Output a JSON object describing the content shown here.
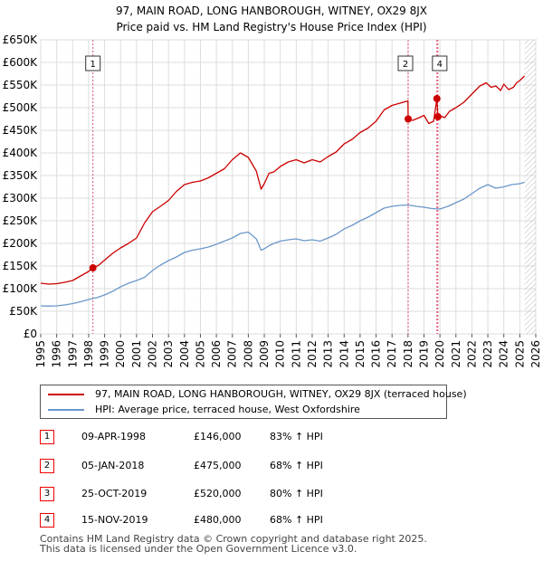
{
  "title": "97, MAIN ROAD, LONG HANBOROUGH, WITNEY, OX29 8JX",
  "subtitle": "Price paid vs. HM Land Registry's House Price Index (HPI)",
  "colors": {
    "property": "#cc0000",
    "hpi": "#6b97c9",
    "marker": "#e05070",
    "grid": "#dddddd"
  },
  "chart_data": {
    "type": "line",
    "ylim": [
      0,
      650000
    ],
    "xlim": [
      1995,
      2026
    ],
    "yticks": [
      {
        "value": 0,
        "label": "£0"
      },
      {
        "value": 50000,
        "label": "£50K"
      },
      {
        "value": 100000,
        "label": "£100K"
      },
      {
        "value": 150000,
        "label": "£150K"
      },
      {
        "value": 200000,
        "label": "£200K"
      },
      {
        "value": 250000,
        "label": "£250K"
      },
      {
        "value": 300000,
        "label": "£300K"
      },
      {
        "value": 350000,
        "label": "£350K"
      },
      {
        "value": 400000,
        "label": "£400K"
      },
      {
        "value": 450000,
        "label": "£450K"
      },
      {
        "value": 500000,
        "label": "£500K"
      },
      {
        "value": 550000,
        "label": "£550K"
      },
      {
        "value": 600000,
        "label": "£600K"
      },
      {
        "value": 650000,
        "label": "£650K"
      }
    ],
    "xticks": [
      "1995",
      "1996",
      "1997",
      "1998",
      "1999",
      "2000",
      "2001",
      "2002",
      "2003",
      "2004",
      "2005",
      "2006",
      "2007",
      "2008",
      "2009",
      "2010",
      "2011",
      "2012",
      "2013",
      "2014",
      "2015",
      "2016",
      "2017",
      "2018",
      "2019",
      "2020",
      "2021",
      "2022",
      "2023",
      "2024",
      "2025",
      "2026"
    ],
    "series": [
      {
        "name": "97, MAIN ROAD, LONG HANBOROUGH, WITNEY, OX29 8JX (terraced house)",
        "x": [
          1995.0,
          1995.5,
          1996.0,
          1996.5,
          1997.0,
          1997.5,
          1998.0,
          1998.27,
          1998.6,
          1999.0,
          1999.5,
          2000.0,
          2000.5,
          2001.0,
          2001.5,
          2002.0,
          2002.5,
          2003.0,
          2003.5,
          2004.0,
          2004.5,
          2005.0,
          2005.5,
          2006.0,
          2006.5,
          2007.0,
          2007.5,
          2008.0,
          2008.5,
          2008.8,
          2009.0,
          2009.3,
          2009.6,
          2010.0,
          2010.5,
          2011.0,
          2011.5,
          2012.0,
          2012.5,
          2013.0,
          2013.5,
          2014.0,
          2014.5,
          2015.0,
          2015.5,
          2016.0,
          2016.5,
          2017.0,
          2017.5,
          2018.0,
          2018.01,
          2018.3,
          2018.7,
          2019.0,
          2019.3,
          2019.6,
          2019.81,
          2019.87,
          2020.0,
          2020.3,
          2020.6,
          2021.0,
          2021.5,
          2022.0,
          2022.5,
          2022.9,
          2023.2,
          2023.5,
          2023.8,
          2024.0,
          2024.3,
          2024.6,
          2024.8,
          2025.0,
          2025.3
        ],
        "values": [
          112000,
          110000,
          111000,
          114000,
          118000,
          128000,
          138000,
          146000,
          151000,
          163000,
          178000,
          190000,
          200000,
          212000,
          245000,
          270000,
          282000,
          295000,
          315000,
          330000,
          335000,
          338000,
          345000,
          355000,
          365000,
          385000,
          400000,
          390000,
          360000,
          320000,
          332000,
          355000,
          358000,
          370000,
          380000,
          385000,
          378000,
          385000,
          380000,
          392000,
          402000,
          420000,
          430000,
          445000,
          455000,
          470000,
          495000,
          505000,
          510000,
          515000,
          475000,
          472000,
          478000,
          483000,
          465000,
          470000,
          520000,
          480000,
          482000,
          478000,
          492000,
          500000,
          512000,
          530000,
          548000,
          555000,
          545000,
          548000,
          538000,
          552000,
          540000,
          545000,
          555000,
          560000,
          570000
        ]
      },
      {
        "name": "HPI: Average price, terraced house, West Oxfordshire",
        "x": [
          1995.0,
          1995.5,
          1996.0,
          1996.5,
          1997.0,
          1997.5,
          1998.0,
          1998.5,
          1999.0,
          1999.5,
          2000.0,
          2000.5,
          2001.0,
          2001.5,
          2002.0,
          2002.5,
          2003.0,
          2003.5,
          2004.0,
          2004.5,
          2005.0,
          2005.5,
          2006.0,
          2006.5,
          2007.0,
          2007.5,
          2008.0,
          2008.5,
          2008.8,
          2009.0,
          2009.3,
          2009.6,
          2010.0,
          2010.5,
          2011.0,
          2011.5,
          2012.0,
          2012.5,
          2013.0,
          2013.5,
          2014.0,
          2014.5,
          2015.0,
          2015.5,
          2016.0,
          2016.5,
          2017.0,
          2017.5,
          2018.0,
          2018.5,
          2019.0,
          2019.5,
          2020.0,
          2020.5,
          2021.0,
          2021.5,
          2022.0,
          2022.5,
          2023.0,
          2023.5,
          2024.0,
          2024.5,
          2025.0,
          2025.3
        ],
        "values": [
          62000,
          61500,
          62000,
          64000,
          67000,
          71000,
          76000,
          80000,
          86000,
          94000,
          104000,
          112000,
          118000,
          125000,
          140000,
          152000,
          162000,
          170000,
          180000,
          185000,
          188000,
          192000,
          198000,
          205000,
          212000,
          222000,
          225000,
          210000,
          185000,
          188000,
          195000,
          200000,
          205000,
          208000,
          210000,
          206000,
          208000,
          205000,
          212000,
          220000,
          232000,
          240000,
          250000,
          258000,
          268000,
          278000,
          282000,
          284000,
          285000,
          282000,
          280000,
          277000,
          276000,
          282000,
          290000,
          298000,
          310000,
          322000,
          330000,
          322000,
          325000,
          330000,
          332000,
          335000
        ]
      }
    ],
    "markers": [
      {
        "label": "1",
        "x": 1998.27,
        "value": 146000
      },
      {
        "label": "2",
        "x": 2018.01,
        "value": 475000
      },
      {
        "label": "3",
        "x": 2019.81,
        "value": 520000
      },
      {
        "label": "4",
        "x": 2019.87,
        "value": 480000
      }
    ]
  },
  "legend": {
    "property": "97, MAIN ROAD, LONG HANBOROUGH, WITNEY, OX29 8JX (terraced house)",
    "hpi": "HPI: Average price, terraced house, West Oxfordshire"
  },
  "transactions": [
    {
      "num": "1",
      "date": "09-APR-1998",
      "price": "£146,000",
      "hpi": "83% ↑ HPI"
    },
    {
      "num": "2",
      "date": "05-JAN-2018",
      "price": "£475,000",
      "hpi": "68% ↑ HPI"
    },
    {
      "num": "3",
      "date": "25-OCT-2019",
      "price": "£520,000",
      "hpi": "80% ↑ HPI"
    },
    {
      "num": "4",
      "date": "15-NOV-2019",
      "price": "£480,000",
      "hpi": "68% ↑ HPI"
    }
  ],
  "footer": {
    "line1": "Contains HM Land Registry data © Crown copyright and database right 2025.",
    "line2": "This data is licensed under the Open Government Licence v3.0."
  }
}
